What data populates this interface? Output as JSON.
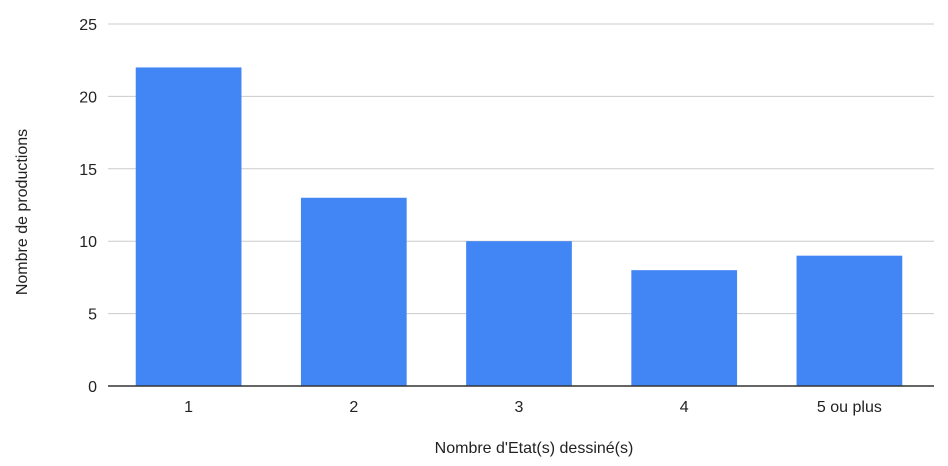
{
  "chart_data": {
    "type": "bar",
    "title": "",
    "xlabel": "Nombre d'Etat(s) dessiné(s)",
    "ylabel": "Nombre de productions",
    "categories": [
      "1",
      "2",
      "3",
      "4",
      "5 ou plus"
    ],
    "values": [
      22,
      13,
      10,
      8,
      9
    ],
    "ylim": [
      0,
      25
    ],
    "yticks": [
      "0",
      "5",
      "10",
      "15",
      "20",
      "25"
    ],
    "grid": true,
    "legend": "none",
    "colors": {
      "bar": "#4285f4",
      "grid": "#cccccc",
      "baseline": "#333333"
    }
  }
}
